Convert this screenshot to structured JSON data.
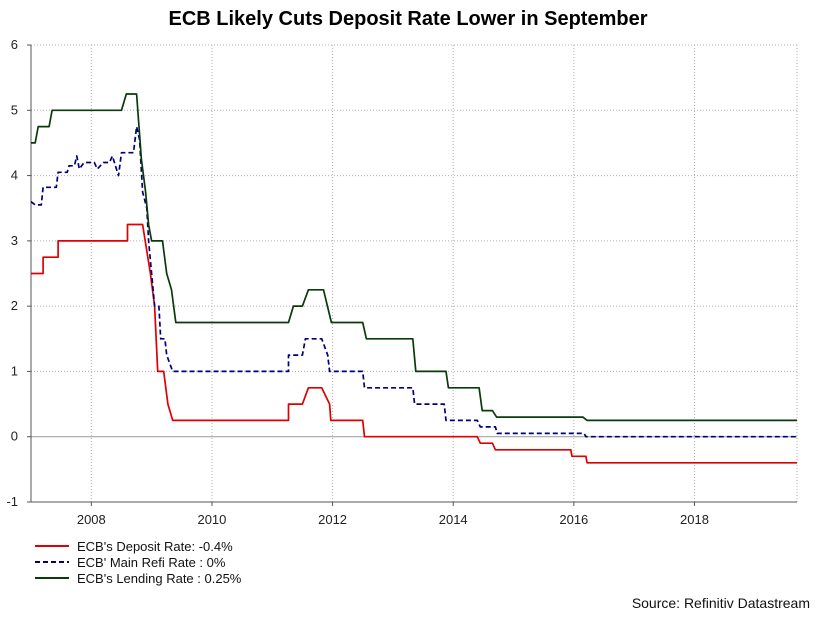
{
  "chart_data": {
    "type": "line",
    "title": "ECB Likely Cuts Deposit Rate Lower in September",
    "xlabel": "",
    "ylabel": "",
    "xlim": [
      2007.0,
      2019.7
    ],
    "ylim": [
      -1,
      6
    ],
    "grid": true,
    "x_ticks": [
      2008,
      2010,
      2012,
      2014,
      2016,
      2018
    ],
    "x_tick_labels": [
      "2008",
      "2010",
      "2012",
      "2014",
      "2016",
      "2018"
    ],
    "y_ticks": [
      -1,
      0,
      1,
      2,
      3,
      4,
      5,
      6
    ],
    "y_tick_labels": [
      "-1",
      "0",
      "1",
      "2",
      "3",
      "4",
      "5",
      "6"
    ],
    "legend_position": "bottom-left",
    "source": "Source: Refinitiv Datastream",
    "series": [
      {
        "name": "ECB's Deposit Rate: -0.4%",
        "color": "#e00000",
        "style": "solid",
        "points": [
          [
            2007.0,
            2.5
          ],
          [
            2007.2,
            2.5
          ],
          [
            2007.2,
            2.75
          ],
          [
            2007.45,
            2.75
          ],
          [
            2007.45,
            3.0
          ],
          [
            2008.6,
            3.0
          ],
          [
            2008.6,
            3.25
          ],
          [
            2008.85,
            3.25
          ],
          [
            2008.98,
            2.5
          ],
          [
            2009.05,
            2.0
          ],
          [
            2009.1,
            1.0
          ],
          [
            2009.2,
            1.0
          ],
          [
            2009.27,
            0.5
          ],
          [
            2009.35,
            0.25
          ],
          [
            2011.27,
            0.25
          ],
          [
            2011.27,
            0.5
          ],
          [
            2011.5,
            0.5
          ],
          [
            2011.6,
            0.75
          ],
          [
            2011.82,
            0.75
          ],
          [
            2011.95,
            0.5
          ],
          [
            2011.97,
            0.25
          ],
          [
            2012.5,
            0.25
          ],
          [
            2012.53,
            0.0
          ],
          [
            2014.4,
            0.0
          ],
          [
            2014.45,
            -0.1
          ],
          [
            2014.65,
            -0.1
          ],
          [
            2014.7,
            -0.2
          ],
          [
            2015.95,
            -0.2
          ],
          [
            2015.97,
            -0.3
          ],
          [
            2016.2,
            -0.3
          ],
          [
            2016.22,
            -0.4
          ],
          [
            2019.7,
            -0.4
          ]
        ]
      },
      {
        "name": "ECB' Main Refi Rate : 0%",
        "color": "#00007a",
        "style": "dashed",
        "points": [
          [
            2007.0,
            3.6
          ],
          [
            2007.07,
            3.55
          ],
          [
            2007.17,
            3.55
          ],
          [
            2007.2,
            3.82
          ],
          [
            2007.42,
            3.82
          ],
          [
            2007.45,
            4.05
          ],
          [
            2007.6,
            4.05
          ],
          [
            2007.63,
            4.15
          ],
          [
            2007.72,
            4.15
          ],
          [
            2007.76,
            4.3
          ],
          [
            2007.8,
            4.1
          ],
          [
            2007.88,
            4.2
          ],
          [
            2008.05,
            4.2
          ],
          [
            2008.1,
            4.1
          ],
          [
            2008.2,
            4.2
          ],
          [
            2008.3,
            4.2
          ],
          [
            2008.35,
            4.3
          ],
          [
            2008.45,
            4.0
          ],
          [
            2008.5,
            4.35
          ],
          [
            2008.7,
            4.35
          ],
          [
            2008.75,
            4.75
          ],
          [
            2008.8,
            4.55
          ],
          [
            2008.85,
            3.75
          ],
          [
            2008.92,
            3.5
          ],
          [
            2008.95,
            3.0
          ],
          [
            2009.0,
            2.5
          ],
          [
            2009.05,
            2.0
          ],
          [
            2009.12,
            2.0
          ],
          [
            2009.15,
            1.5
          ],
          [
            2009.22,
            1.5
          ],
          [
            2009.25,
            1.25
          ],
          [
            2009.35,
            1.0
          ],
          [
            2011.27,
            1.0
          ],
          [
            2011.27,
            1.25
          ],
          [
            2011.5,
            1.25
          ],
          [
            2011.55,
            1.5
          ],
          [
            2011.82,
            1.5
          ],
          [
            2011.92,
            1.25
          ],
          [
            2011.95,
            1.0
          ],
          [
            2012.5,
            1.0
          ],
          [
            2012.53,
            0.75
          ],
          [
            2013.33,
            0.75
          ],
          [
            2013.36,
            0.5
          ],
          [
            2013.85,
            0.5
          ],
          [
            2013.88,
            0.25
          ],
          [
            2014.4,
            0.25
          ],
          [
            2014.45,
            0.15
          ],
          [
            2014.7,
            0.15
          ],
          [
            2014.73,
            0.05
          ],
          [
            2016.17,
            0.05
          ],
          [
            2016.2,
            0.0
          ],
          [
            2019.7,
            0.0
          ]
        ]
      },
      {
        "name": "ECB's Lending Rate : 0.25%",
        "color": "#0a3a0a",
        "style": "solid",
        "points": [
          [
            2007.0,
            4.5
          ],
          [
            2007.07,
            4.5
          ],
          [
            2007.12,
            4.75
          ],
          [
            2007.3,
            4.75
          ],
          [
            2007.35,
            5.0
          ],
          [
            2008.5,
            5.0
          ],
          [
            2008.58,
            5.25
          ],
          [
            2008.75,
            5.25
          ],
          [
            2008.83,
            4.25
          ],
          [
            2008.9,
            3.75
          ],
          [
            2008.95,
            3.25
          ],
          [
            2009.0,
            3.0
          ],
          [
            2009.18,
            3.0
          ],
          [
            2009.25,
            2.5
          ],
          [
            2009.33,
            2.25
          ],
          [
            2009.4,
            1.75
          ],
          [
            2011.27,
            1.75
          ],
          [
            2011.35,
            2.0
          ],
          [
            2011.5,
            2.0
          ],
          [
            2011.6,
            2.25
          ],
          [
            2011.85,
            2.25
          ],
          [
            2011.98,
            1.75
          ],
          [
            2012.5,
            1.75
          ],
          [
            2012.56,
            1.5
          ],
          [
            2013.33,
            1.5
          ],
          [
            2013.38,
            1.0
          ],
          [
            2013.88,
            1.0
          ],
          [
            2013.92,
            0.75
          ],
          [
            2014.43,
            0.75
          ],
          [
            2014.48,
            0.4
          ],
          [
            2014.65,
            0.4
          ],
          [
            2014.72,
            0.3
          ],
          [
            2016.15,
            0.3
          ],
          [
            2016.22,
            0.25
          ],
          [
            2019.7,
            0.25
          ]
        ]
      }
    ]
  }
}
